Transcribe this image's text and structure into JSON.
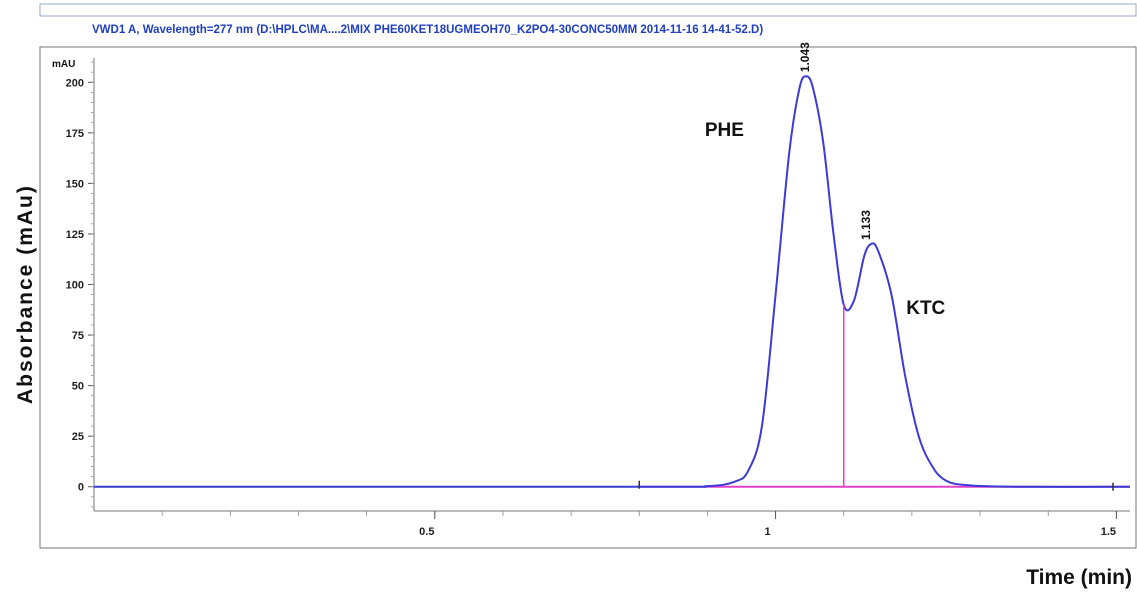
{
  "chart_data": {
    "type": "line",
    "title": "VWD1 A, Wavelength=277 nm (D:\\HPLC\\MA....2\\MIX PHE60KET18UGMEOH70_K2PO4-30CONC50MM 2014-11-16 14-41-52.D)",
    "ylabel": "Absorbance  (mAu)",
    "y_unit": "mAU",
    "xlabel": "Time (min)",
    "xlim": [
      0.0,
      1.52
    ],
    "ylim": [
      -12,
      212
    ],
    "x_ticks": [
      0.5,
      1,
      1.5
    ],
    "x_tick_labels": [
      "0.5",
      "1",
      "1.5"
    ],
    "y_ticks": [
      0,
      25,
      50,
      75,
      100,
      125,
      150,
      175,
      200
    ],
    "y_tick_labels": [
      "0",
      "25",
      "50",
      "75",
      "100",
      "125",
      "150",
      "175",
      "200"
    ],
    "grid": false,
    "series": [
      {
        "color": "#3b3bd6",
        "points": [
          [
            0.0,
            0
          ],
          [
            0.8,
            0
          ],
          [
            0.9,
            0.3
          ],
          [
            0.94,
            2.5
          ],
          [
            0.96,
            8
          ],
          [
            0.98,
            30
          ],
          [
            1.0,
            95
          ],
          [
            1.02,
            165
          ],
          [
            1.035,
            197
          ],
          [
            1.045,
            203
          ],
          [
            1.055,
            197
          ],
          [
            1.07,
            170
          ],
          [
            1.085,
            125
          ],
          [
            1.1,
            90
          ],
          [
            1.115,
            92
          ],
          [
            1.13,
            114
          ],
          [
            1.14,
            120
          ],
          [
            1.15,
            117
          ],
          [
            1.17,
            95
          ],
          [
            1.19,
            55
          ],
          [
            1.21,
            25
          ],
          [
            1.23,
            10
          ],
          [
            1.25,
            3
          ],
          [
            1.28,
            0.8
          ],
          [
            1.35,
            0
          ],
          [
            1.52,
            0
          ]
        ]
      }
    ],
    "baseline": {
      "color": "#e040c8",
      "x": [
        0.8,
        1.52
      ],
      "y": [
        0,
        0
      ]
    },
    "peak_split": {
      "color": "#e040c8",
      "x": 1.1,
      "y": [
        0,
        90
      ]
    },
    "peaks": [
      {
        "name": "PHE",
        "retention_time": "1.043",
        "x": 1.043,
        "y": 203
      },
      {
        "name": "KTC",
        "retention_time": "1.133",
        "x": 1.133,
        "y": 120
      }
    ]
  }
}
